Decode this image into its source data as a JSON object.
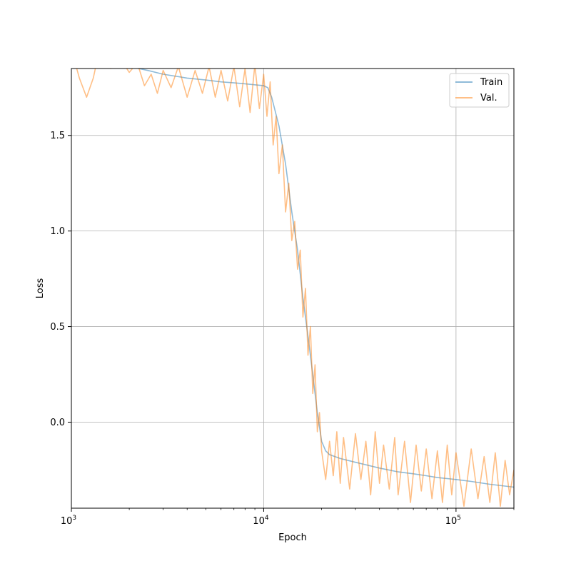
{
  "chart_data": {
    "type": "line",
    "xlabel": "Epoch",
    "ylabel": "Loss",
    "x_scale": "log",
    "xlim": [
      1000,
      200000
    ],
    "ylim": [
      -0.45,
      1.85
    ],
    "x_ticks": [
      {
        "value": 1000,
        "base": "10",
        "exp": "3"
      },
      {
        "value": 10000,
        "base": "10",
        "exp": "4"
      },
      {
        "value": 100000,
        "base": "10",
        "exp": "5"
      }
    ],
    "y_ticks": [
      {
        "value": 0.0,
        "label": "0.0"
      },
      {
        "value": 0.5,
        "label": "0.5"
      },
      {
        "value": 1.0,
        "label": "1.0"
      },
      {
        "value": 1.5,
        "label": "1.5"
      }
    ],
    "grid": true,
    "legend_position": "top-right",
    "series": [
      {
        "name": "Train",
        "color": "#1f77b4",
        "points": [
          [
            1000,
            1.95
          ],
          [
            1500,
            1.9
          ],
          [
            2000,
            1.86
          ],
          [
            2500,
            1.84
          ],
          [
            3000,
            1.82
          ],
          [
            4000,
            1.8
          ],
          [
            5000,
            1.79
          ],
          [
            6000,
            1.78
          ],
          [
            7000,
            1.775
          ],
          [
            8000,
            1.77
          ],
          [
            9000,
            1.765
          ],
          [
            10000,
            1.76
          ],
          [
            10500,
            1.75
          ],
          [
            11000,
            1.7
          ],
          [
            12000,
            1.55
          ],
          [
            13000,
            1.35
          ],
          [
            14000,
            1.1
          ],
          [
            15000,
            0.9
          ],
          [
            16000,
            0.65
          ],
          [
            17000,
            0.45
          ],
          [
            18000,
            0.25
          ],
          [
            19000,
            0.05
          ],
          [
            20000,
            -0.1
          ],
          [
            21000,
            -0.15
          ],
          [
            22000,
            -0.17
          ],
          [
            25000,
            -0.19
          ],
          [
            30000,
            -0.21
          ],
          [
            40000,
            -0.24
          ],
          [
            50000,
            -0.26
          ],
          [
            60000,
            -0.27
          ],
          [
            70000,
            -0.28
          ],
          [
            80000,
            -0.29
          ],
          [
            100000,
            -0.3
          ],
          [
            120000,
            -0.31
          ],
          [
            150000,
            -0.325
          ],
          [
            200000,
            -0.34
          ]
        ]
      },
      {
        "name": "Val.",
        "color": "#ff7f0e",
        "points": [
          [
            1000,
            1.95
          ],
          [
            1100,
            1.8
          ],
          [
            1200,
            1.7
          ],
          [
            1300,
            1.8
          ],
          [
            1400,
            1.95
          ],
          [
            1600,
            1.85
          ],
          [
            1800,
            1.9
          ],
          [
            2000,
            1.83
          ],
          [
            2200,
            1.88
          ],
          [
            2400,
            1.76
          ],
          [
            2600,
            1.82
          ],
          [
            2800,
            1.72
          ],
          [
            3000,
            1.84
          ],
          [
            3300,
            1.75
          ],
          [
            3600,
            1.86
          ],
          [
            4000,
            1.7
          ],
          [
            4400,
            1.84
          ],
          [
            4800,
            1.72
          ],
          [
            5200,
            1.86
          ],
          [
            5600,
            1.7
          ],
          [
            6000,
            1.84
          ],
          [
            6500,
            1.68
          ],
          [
            7000,
            1.86
          ],
          [
            7500,
            1.65
          ],
          [
            8000,
            1.85
          ],
          [
            8500,
            1.62
          ],
          [
            9000,
            1.87
          ],
          [
            9500,
            1.64
          ],
          [
            10000,
            1.82
          ],
          [
            10400,
            1.6
          ],
          [
            10800,
            1.78
          ],
          [
            11200,
            1.45
          ],
          [
            11600,
            1.6
          ],
          [
            12000,
            1.3
          ],
          [
            12500,
            1.45
          ],
          [
            13000,
            1.1
          ],
          [
            13500,
            1.25
          ],
          [
            14000,
            0.95
          ],
          [
            14500,
            1.05
          ],
          [
            15000,
            0.8
          ],
          [
            15500,
            0.9
          ],
          [
            16000,
            0.55
          ],
          [
            16500,
            0.7
          ],
          [
            17000,
            0.35
          ],
          [
            17500,
            0.5
          ],
          [
            18000,
            0.15
          ],
          [
            18500,
            0.3
          ],
          [
            19000,
            -0.05
          ],
          [
            19500,
            0.05
          ],
          [
            20000,
            -0.15
          ],
          [
            21000,
            -0.3
          ],
          [
            22000,
            -0.1
          ],
          [
            23000,
            -0.28
          ],
          [
            24000,
            -0.05
          ],
          [
            25000,
            -0.32
          ],
          [
            26000,
            -0.08
          ],
          [
            28000,
            -0.35
          ],
          [
            30000,
            -0.06
          ],
          [
            32000,
            -0.3
          ],
          [
            34000,
            -0.1
          ],
          [
            36000,
            -0.38
          ],
          [
            38000,
            -0.05
          ],
          [
            40000,
            -0.32
          ],
          [
            42000,
            -0.12
          ],
          [
            45000,
            -0.35
          ],
          [
            48000,
            -0.08
          ],
          [
            50000,
            -0.38
          ],
          [
            54000,
            -0.1
          ],
          [
            58000,
            -0.42
          ],
          [
            62000,
            -0.12
          ],
          [
            66000,
            -0.36
          ],
          [
            70000,
            -0.14
          ],
          [
            75000,
            -0.4
          ],
          [
            80000,
            -0.15
          ],
          [
            85000,
            -0.42
          ],
          [
            90000,
            -0.12
          ],
          [
            95000,
            -0.38
          ],
          [
            100000,
            -0.16
          ],
          [
            110000,
            -0.44
          ],
          [
            120000,
            -0.14
          ],
          [
            130000,
            -0.4
          ],
          [
            140000,
            -0.18
          ],
          [
            150000,
            -0.42
          ],
          [
            160000,
            -0.16
          ],
          [
            170000,
            -0.44
          ],
          [
            180000,
            -0.2
          ],
          [
            190000,
            -0.38
          ],
          [
            200000,
            -0.25
          ]
        ]
      }
    ]
  }
}
